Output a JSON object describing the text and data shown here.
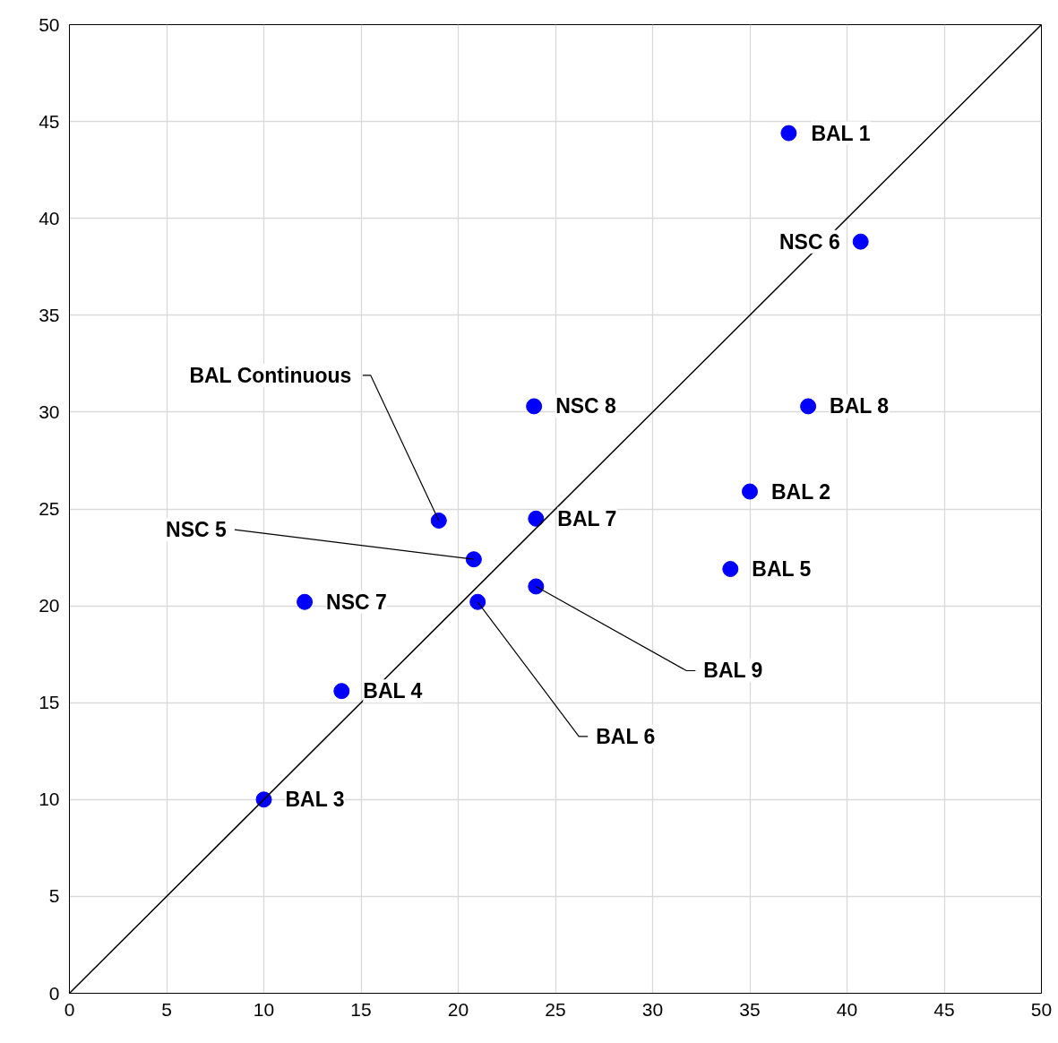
{
  "chart_data": {
    "type": "scatter",
    "series": [
      {
        "color": "#0000ff",
        "marker": "circle",
        "x": [
          37.0,
          40.7,
          23.9,
          38.0,
          19.0,
          35.0,
          24.0,
          20.8,
          34.0,
          24.0,
          12.1,
          21.0,
          14.0,
          10.0
        ],
        "values": [
          44.4,
          38.8,
          30.3,
          30.3,
          24.4,
          25.9,
          24.5,
          22.4,
          21.9,
          21.0,
          20.2,
          20.2,
          15.6,
          10.0
        ]
      },
      {
        "type": "line",
        "color": "#000000",
        "x": [
          0,
          50
        ],
        "values": [
          0,
          50
        ]
      }
    ],
    "annotations": [
      {
        "text": "BAL 1",
        "x": 37.0,
        "y": 44.4
      },
      {
        "text": "NSC 6",
        "x": 40.7,
        "y": 38.8
      },
      {
        "text": "NSC 8",
        "x": 23.9,
        "y": 30.3
      },
      {
        "text": "BAL 8",
        "x": 38.0,
        "y": 30.3
      },
      {
        "text": "BAL Continuous",
        "x": 19.0,
        "y": 24.4
      },
      {
        "text": "BAL 2",
        "x": 35.0,
        "y": 25.9
      },
      {
        "text": "BAL 7",
        "x": 24.0,
        "y": 24.5
      },
      {
        "text": "NSC 5",
        "x": 20.8,
        "y": 22.4
      },
      {
        "text": "BAL 5",
        "x": 34.0,
        "y": 21.9
      },
      {
        "text": "BAL 9",
        "x": 24.0,
        "y": 21.0
      },
      {
        "text": "NSC 7",
        "x": 12.1,
        "y": 20.2
      },
      {
        "text": "BAL 6",
        "x": 21.0,
        "y": 20.2
      },
      {
        "text": "BAL 4",
        "x": 14.0,
        "y": 15.6
      },
      {
        "text": "BAL 3",
        "x": 10.0,
        "y": 10.0
      }
    ],
    "xlim": [
      0,
      50
    ],
    "ylim": [
      0,
      50
    ],
    "xticks": [
      0,
      5,
      10,
      15,
      20,
      25,
      30,
      35,
      40,
      45,
      50
    ],
    "yticks": [
      0,
      5,
      10,
      15,
      20,
      25,
      30,
      35,
      40,
      45,
      50
    ],
    "grid": true
  }
}
